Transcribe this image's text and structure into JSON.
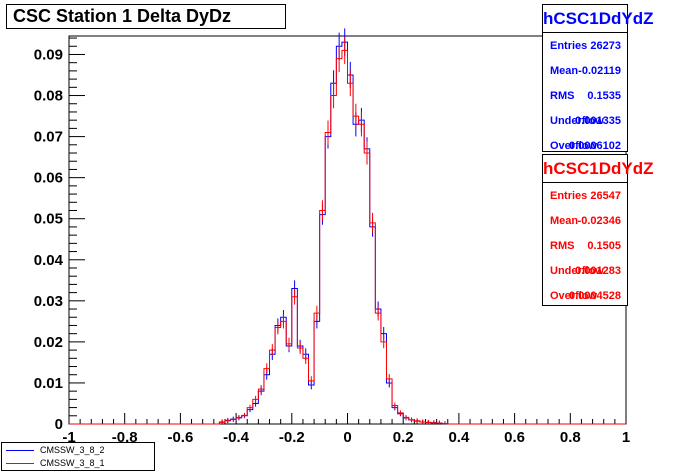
{
  "title": "CSC Station 1 Delta DyDz",
  "stats": [
    {
      "name": "hCSC1DdYdZ",
      "color": "#0000ff",
      "rows": [
        {
          "key": "Entries",
          "value": "26273"
        },
        {
          "key": "Mean",
          "value": "-0.02119"
        },
        {
          "key": "RMS",
          "value": "0.1535"
        },
        {
          "key": "Underflow",
          "value": "0.001335"
        },
        {
          "key": "Overflow",
          "value": "0.0006102"
        }
      ]
    },
    {
      "name": "hCSC1DdYdZ",
      "color": "#ff0000",
      "rows": [
        {
          "key": "Entries",
          "value": "26547"
        },
        {
          "key": "Mean",
          "value": "-0.02346"
        },
        {
          "key": "RMS",
          "value": "0.1505"
        },
        {
          "key": "Underflow",
          "value": "0.001283"
        },
        {
          "key": "Overflow",
          "value": "0.0004528"
        }
      ]
    }
  ],
  "legend": [
    {
      "label": "CMSSW_3_8_2",
      "color": "#0000ff"
    },
    {
      "label": "CMSSW_3_8_1",
      "color": "#ff0000"
    }
  ],
  "chart_data": {
    "type": "histogram",
    "title": "CSC Station 1 Delta DyDz",
    "xlabel": "",
    "ylabel": "",
    "xlim": [
      -1,
      1
    ],
    "ylim": [
      0,
      0.0945
    ],
    "x_ticks": [
      "-1",
      "-0.8",
      "-0.6",
      "-0.4",
      "-0.2",
      "0",
      "0.2",
      "0.4",
      "0.6",
      "0.8",
      "1"
    ],
    "y_ticks": [
      "0",
      "0.01",
      "0.02",
      "0.03",
      "0.04",
      "0.05",
      "0.06",
      "0.07",
      "0.08",
      "0.09"
    ],
    "bin_width": 0.02,
    "grid": false,
    "legend_position": "bottom-left",
    "series": [
      {
        "name": "CMSSW_3_8_2",
        "color": "#0000ff",
        "bin_centers": [
          -0.45,
          -0.43,
          -0.41,
          -0.39,
          -0.37,
          -0.35,
          -0.33,
          -0.31,
          -0.29,
          -0.27,
          -0.25,
          -0.23,
          -0.21,
          -0.19,
          -0.17,
          -0.15,
          -0.13,
          -0.11,
          -0.09,
          -0.07,
          -0.05,
          -0.03,
          -0.01,
          0.01,
          0.03,
          0.05,
          0.07,
          0.09,
          0.11,
          0.13,
          0.15,
          0.17,
          0.19,
          0.21,
          0.23,
          0.25,
          0.27,
          0.29,
          0.31,
          0.33,
          0.35
        ],
        "values": [
          0.0005,
          0.0008,
          0.0012,
          0.0015,
          0.002,
          0.0035,
          0.005,
          0.008,
          0.012,
          0.017,
          0.024,
          0.026,
          0.019,
          0.033,
          0.019,
          0.017,
          0.0095,
          0.025,
          0.051,
          0.07,
          0.083,
          0.092,
          0.093,
          0.085,
          0.073,
          0.074,
          0.067,
          0.048,
          0.028,
          0.022,
          0.01,
          0.004,
          0.0025,
          0.0015,
          0.001,
          0.0007,
          0.0005,
          0.0004,
          0.0003,
          0.0002,
          0.0001
        ]
      },
      {
        "name": "CMSSW_3_8_1",
        "color": "#ff0000",
        "bin_centers": [
          -0.45,
          -0.43,
          -0.41,
          -0.39,
          -0.37,
          -0.35,
          -0.33,
          -0.31,
          -0.29,
          -0.27,
          -0.25,
          -0.23,
          -0.21,
          -0.19,
          -0.17,
          -0.15,
          -0.13,
          -0.11,
          -0.09,
          -0.07,
          -0.05,
          -0.03,
          -0.01,
          0.01,
          0.03,
          0.05,
          0.07,
          0.09,
          0.11,
          0.13,
          0.15,
          0.17,
          0.19,
          0.21,
          0.23,
          0.25,
          0.27,
          0.29,
          0.31,
          0.33,
          0.35
        ],
        "values": [
          0.0004,
          0.0009,
          0.0011,
          0.0016,
          0.0021,
          0.004,
          0.006,
          0.0085,
          0.0135,
          0.018,
          0.0235,
          0.025,
          0.0195,
          0.031,
          0.0185,
          0.016,
          0.0105,
          0.027,
          0.052,
          0.071,
          0.08,
          0.089,
          0.091,
          0.083,
          0.075,
          0.073,
          0.066,
          0.049,
          0.027,
          0.02,
          0.011,
          0.0045,
          0.0027,
          0.0016,
          0.001,
          0.0008,
          0.0005,
          0.0004,
          0.0003,
          0.0002,
          0.0001
        ]
      }
    ]
  }
}
